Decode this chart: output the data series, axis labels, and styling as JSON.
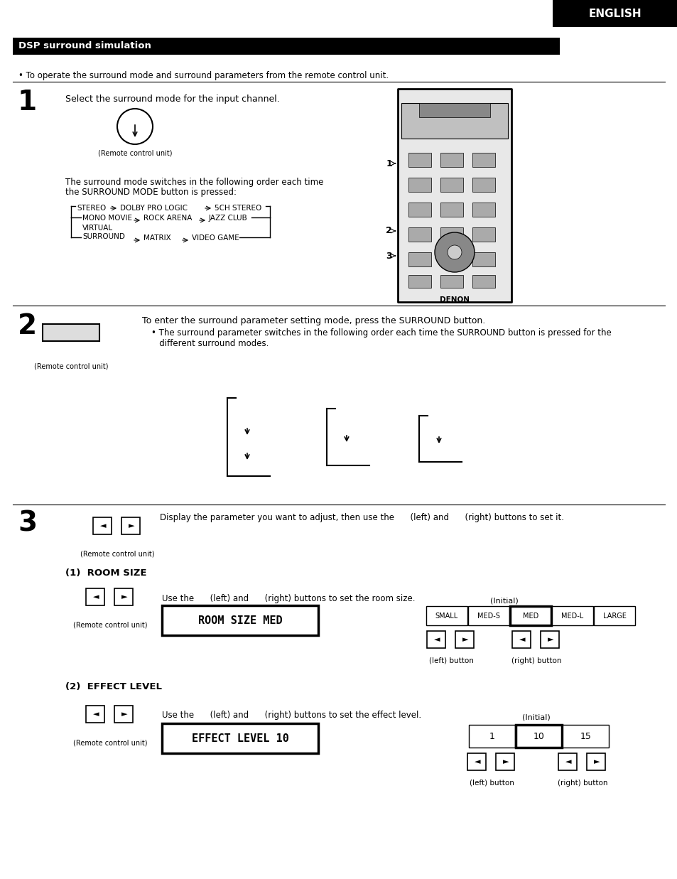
{
  "title": "DSP surround simulation",
  "english_label": "ENGLISH",
  "bg_color": "#ffffff",
  "bullet_text": "• To operate the surround mode and surround parameters from the remote control unit.",
  "step1_text": "Select the surround mode for the input channel.",
  "step1_note1": "The surround mode switches in the following order each time",
  "step1_note2": "the SURROUND MODE button is pressed:",
  "remote_caption": "(Remote control unit)",
  "step2_heading": "To enter the surround parameter setting mode, press the SURROUND button.",
  "step2_bullet": "• The surround parameter switches in the following order each time the SURROUND button is pressed for the\n   different surround modes.",
  "step3_heading": "Display the parameter you want to adjust, then use the      (left) and      (right) buttons to set it.",
  "room_size_section": "(1)  ROOM SIZE",
  "room_size_instr": "Use the      (left) and      (right) buttons to set the room size.",
  "room_size_display": "ROOM SIZE MED",
  "room_size_opts": [
    "SMALL",
    "MED-S",
    "MED",
    "MED-L",
    "LARGE"
  ],
  "room_size_initial": 2,
  "effect_level_section": "(2)  EFFECT LEVEL",
  "effect_level_instr": "Use the      (left) and      (right) buttons to set the effect level.",
  "effect_level_display": "EFFECT LEVEL 10",
  "effect_level_opts": [
    "1",
    "10",
    "15"
  ],
  "effect_level_initial": 1,
  "initial_label": "(Initial)",
  "left_button_label": "(left) button",
  "right_button_label": "(right) button"
}
